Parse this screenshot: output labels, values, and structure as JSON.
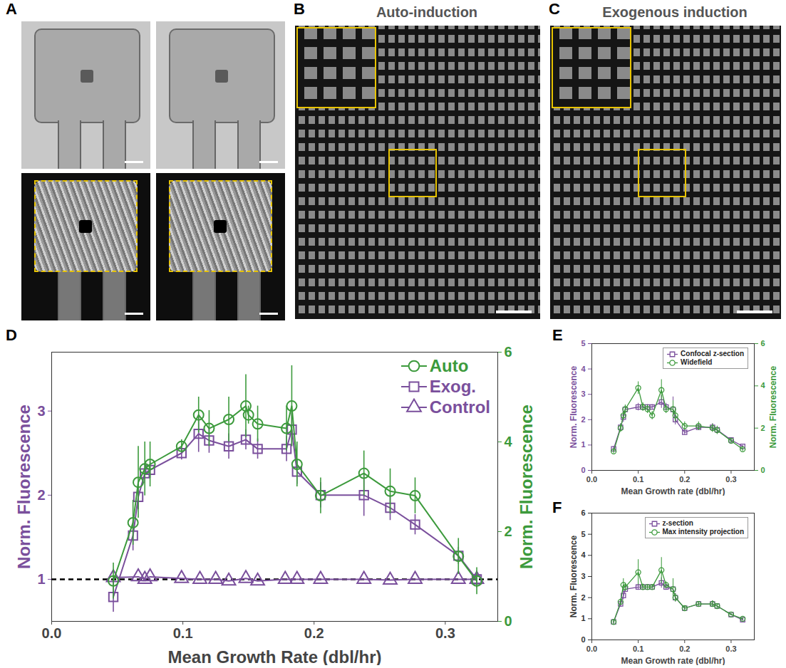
{
  "image_panels": [
    {
      "letter": "A"
    },
    {
      "letter": "B",
      "title": "Auto-induction"
    },
    {
      "letter": "C",
      "title": "Exogenous induction"
    }
  ],
  "chart_data": [
    {
      "panel": "D",
      "type": "line",
      "x_label": "Mean Growth Rate (dbl/hr)",
      "y_label": "Norm. Fluorescence",
      "y2_label": "Norm. Fluorescence",
      "xlim": [
        0,
        0.34
      ],
      "xticks": [
        {
          "value": 0,
          "label": "0.0"
        },
        0.1,
        0.2,
        0.3
      ],
      "ylim": [
        0.5,
        3.7
      ],
      "yticks": [
        1,
        2,
        3
      ],
      "y2lim": [
        0,
        6
      ],
      "y2ticks": [
        0,
        2,
        4,
        6
      ],
      "legend": "top-right",
      "reference_lines": [
        {
          "y": 1,
          "color": "#000000",
          "line_style": "dashed"
        }
      ],
      "series": [
        {
          "name": "Auto",
          "color": "#3c9a3c",
          "marker": "circle",
          "axis": "y2",
          "x": [
            0.047,
            0.062,
            0.066,
            0.071,
            0.075,
            0.099,
            0.112,
            0.12,
            0.135,
            0.148,
            0.15,
            0.157,
            0.179,
            0.183,
            0.187,
            0.205,
            0.238,
            0.258,
            0.277,
            0.31,
            0.324
          ],
          "values": [
            0.9,
            2.2,
            3.1,
            3.4,
            3.5,
            3.9,
            4.6,
            4.3,
            4.5,
            4.8,
            4.6,
            4.4,
            4.3,
            4.8,
            3.5,
            2.8,
            3.3,
            2.9,
            2.8,
            1.45,
            0.9
          ],
          "errors": [
            0.4,
            0.5,
            0.8,
            0.6,
            0.5,
            0.15,
            0.4,
            0.4,
            0.5,
            0.7,
            0.2,
            0.4,
            0.5,
            0.9,
            0.5,
            0.4,
            0.5,
            0.5,
            0.4,
            0.4,
            0.3
          ]
        },
        {
          "name": "Exog.",
          "color": "#7a4f9c",
          "marker": "square",
          "x": [
            0.047,
            0.062,
            0.066,
            0.071,
            0.075,
            0.099,
            0.112,
            0.12,
            0.135,
            0.148,
            0.157,
            0.179,
            0.183,
            0.187,
            0.205,
            0.238,
            0.258,
            0.277,
            0.31,
            0.324
          ],
          "values": [
            0.79,
            1.52,
            1.98,
            2.26,
            2.3,
            2.5,
            2.73,
            2.65,
            2.58,
            2.66,
            2.55,
            2.55,
            2.78,
            2.28,
            2.0,
            2.0,
            1.85,
            1.65,
            1.28,
            1.0
          ],
          "errors": [
            0.18,
            0.18,
            0.15,
            0.12,
            0.1,
            0.08,
            0.22,
            0.15,
            0.15,
            0.12,
            0.12,
            0.15,
            0.2,
            0.15,
            0.15,
            0.25,
            0.15,
            0.12,
            0.1,
            0.1
          ]
        },
        {
          "name": "Control",
          "color": "#7a4f9c",
          "marker": "triangle",
          "x": [
            0.047,
            0.066,
            0.071,
            0.075,
            0.099,
            0.113,
            0.125,
            0.135,
            0.148,
            0.157,
            0.178,
            0.187,
            0.205,
            0.238,
            0.258,
            0.277,
            0.31,
            0.324
          ],
          "values": [
            1.02,
            1.03,
            1.0,
            1.03,
            1.01,
            1.0,
            1.0,
            0.98,
            1.01,
            0.98,
            1.0,
            1.0,
            1.0,
            1.0,
            0.99,
            1.0,
            1.0,
            1.0
          ]
        }
      ]
    },
    {
      "panel": "E",
      "type": "line",
      "x_label": "Mean Growth rate (dbl/hr)",
      "y_label": "Norm. Fluorescence",
      "y2_label": "Norm. Fluorescence",
      "xlim": [
        0,
        0.35
      ],
      "xticks": [
        {
          "value": 0,
          "label": "0.0"
        },
        0.1,
        0.2,
        0.3
      ],
      "ylim": [
        0,
        5
      ],
      "yticks": [
        0,
        1,
        2,
        3,
        4,
        5
      ],
      "y2lim": [
        0,
        6
      ],
      "y2ticks": [
        0,
        2,
        4,
        6
      ],
      "legend": "top-right",
      "series": [
        {
          "name": "Confocal z-section",
          "color": "#7a4f9c",
          "marker": "square",
          "x": [
            0.047,
            0.062,
            0.068,
            0.072,
            0.1,
            0.11,
            0.12,
            0.13,
            0.15,
            0.16,
            0.175,
            0.18,
            0.2,
            0.23,
            0.26,
            0.27,
            0.3,
            0.325
          ],
          "values": [
            0.85,
            1.7,
            2.1,
            2.4,
            2.5,
            2.5,
            2.5,
            2.5,
            2.7,
            2.5,
            2.4,
            2.0,
            1.5,
            1.7,
            1.7,
            1.6,
            1.2,
            0.95
          ],
          "errors": [
            0.1,
            0.15,
            0.2,
            0.15,
            0.15,
            0.1,
            0.1,
            0.1,
            0.25,
            0.15,
            0.5,
            0.2,
            0.1,
            0.1,
            0.15,
            0.1,
            0.05,
            0.05
          ]
        },
        {
          "name": "Widefield",
          "color": "#3c9a3c",
          "marker": "circle",
          "axis": "y2",
          "x": [
            0.047,
            0.062,
            0.068,
            0.072,
            0.1,
            0.11,
            0.12,
            0.13,
            0.15,
            0.16,
            0.175,
            0.18,
            0.2,
            0.23,
            0.26,
            0.27,
            0.3,
            0.325
          ],
          "values": [
            0.9,
            2.0,
            2.6,
            2.9,
            3.9,
            3.0,
            2.9,
            2.6,
            3.8,
            2.9,
            2.9,
            2.6,
            2.1,
            2.1,
            2.0,
            1.9,
            1.4,
            1.0
          ],
          "errors": [
            0.1,
            0.2,
            0.2,
            0.2,
            0.3,
            0.2,
            0.2,
            0.2,
            0.5,
            0.2,
            0.4,
            0.3,
            0.2,
            0.2,
            0.2,
            0.2,
            0.1,
            0.1
          ]
        }
      ]
    },
    {
      "panel": "F",
      "type": "line",
      "x_label": "Mean Growth rate (dbl/hr)",
      "y_label": "Norm. Fluorescence",
      "xlim": [
        0,
        0.35
      ],
      "xticks": [
        {
          "value": 0,
          "label": "0.0"
        },
        0.1,
        0.2,
        0.3
      ],
      "ylim": [
        0,
        6
      ],
      "yticks": [
        0,
        1,
        2,
        3,
        4,
        5,
        6
      ],
      "legend": "top-right",
      "series": [
        {
          "name": "z-section",
          "color": "#7a4f9c",
          "marker": "square",
          "x": [
            0.047,
            0.062,
            0.068,
            0.072,
            0.1,
            0.11,
            0.12,
            0.13,
            0.15,
            0.16,
            0.175,
            0.18,
            0.2,
            0.23,
            0.26,
            0.27,
            0.3,
            0.325
          ],
          "values": [
            0.85,
            1.7,
            2.1,
            2.4,
            2.5,
            2.5,
            2.5,
            2.5,
            2.7,
            2.5,
            2.4,
            2.0,
            1.5,
            1.7,
            1.7,
            1.6,
            1.2,
            0.95
          ],
          "errors": [
            0.1,
            0.15,
            0.2,
            0.15,
            0.15,
            0.1,
            0.1,
            0.1,
            0.25,
            0.15,
            0.5,
            0.2,
            0.1,
            0.1,
            0.15,
            0.1,
            0.05,
            0.05
          ]
        },
        {
          "name": "Max intensity projection",
          "color": "#3c9a3c",
          "marker": "circle",
          "x": [
            0.047,
            0.062,
            0.068,
            0.072,
            0.1,
            0.11,
            0.12,
            0.13,
            0.15,
            0.16,
            0.175,
            0.18,
            0.2,
            0.23,
            0.26,
            0.27,
            0.3,
            0.325
          ],
          "values": [
            0.85,
            1.8,
            2.6,
            2.5,
            3.2,
            2.5,
            2.5,
            2.5,
            3.3,
            2.6,
            2.4,
            2.0,
            1.5,
            1.7,
            1.7,
            1.6,
            1.2,
            1.0
          ],
          "errors": [
            0.1,
            0.15,
            0.3,
            0.2,
            0.6,
            0.15,
            0.1,
            0.1,
            0.6,
            0.15,
            0.5,
            0.2,
            0.1,
            0.1,
            0.15,
            0.1,
            0.05,
            0.05
          ]
        }
      ]
    }
  ]
}
